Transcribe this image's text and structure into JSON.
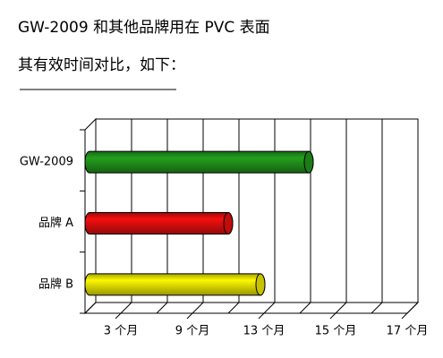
{
  "chart_data": {
    "type": "bar3d",
    "title": "GW-2009 和其他品牌用在 PVC 表面",
    "subtitle": "其有效时间对比，如下：",
    "categories": [
      "GW-2009",
      "品牌 A",
      "品牌 B"
    ],
    "values": [
      6.25,
      4,
      4.9
    ],
    "colors": [
      "#1f8a1a",
      "#d40d0d",
      "#dcd800"
    ],
    "xlim": [
      0,
      9
    ],
    "xticks": [
      {
        "value": 1,
        "label": "3 个月"
      },
      {
        "value": 3,
        "label": "9 个月"
      },
      {
        "value": 5,
        "label": "13 个月"
      },
      {
        "value": 7,
        "label": "15 个月"
      },
      {
        "value": 9,
        "label": "17 个月"
      }
    ],
    "grid": true
  }
}
